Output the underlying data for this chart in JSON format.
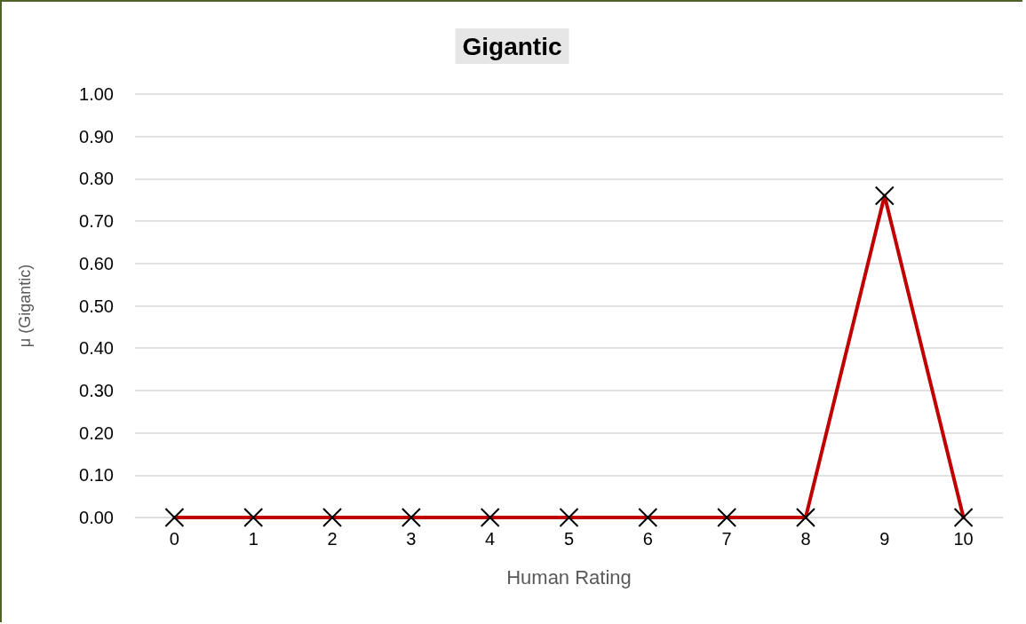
{
  "chart_data": {
    "type": "line",
    "title": "Gigantic",
    "xlabel": "Human Rating",
    "ylabel": "μ (Gigantic)",
    "categories": [
      "0",
      "1",
      "2",
      "3",
      "4",
      "5",
      "6",
      "7",
      "8",
      "9",
      "10"
    ],
    "series": [
      {
        "color": "#c00000",
        "values": [
          0,
          0,
          0,
          0,
          0,
          0,
          0,
          0,
          0,
          0.76,
          0
        ]
      }
    ],
    "ylim": [
      0,
      1
    ],
    "yticks": [
      {
        "value": 0,
        "label": "0.00"
      },
      {
        "value": 0.1,
        "label": "0.10"
      },
      {
        "value": 0.2,
        "label": "0.20"
      },
      {
        "value": 0.3,
        "label": "0.30"
      },
      {
        "value": 0.4,
        "label": "0.40"
      },
      {
        "value": 0.5,
        "label": "0.50"
      },
      {
        "value": 0.6,
        "label": "0.60"
      },
      {
        "value": 0.7,
        "label": "0.70"
      },
      {
        "value": 0.8,
        "label": "0.80"
      },
      {
        "value": 0.9,
        "label": "0.90"
      },
      {
        "value": 1,
        "label": "1.00"
      }
    ],
    "grid": "y",
    "marker": "cross",
    "line_style": "solid"
  }
}
